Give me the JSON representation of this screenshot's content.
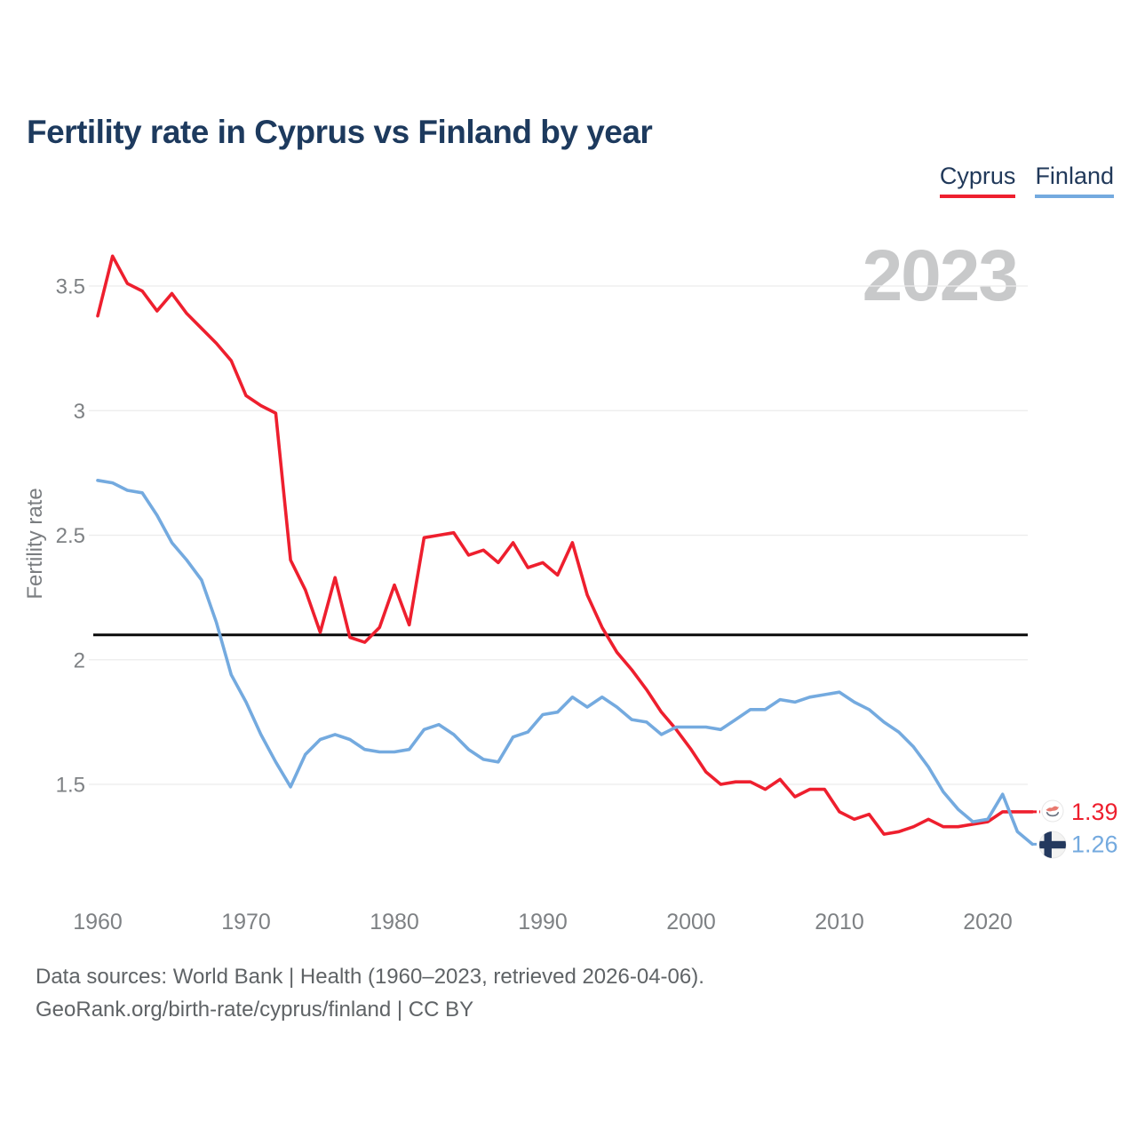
{
  "header": {
    "title": "Fertility rate in Cyprus vs Finland by year"
  },
  "legend": [
    {
      "label": "Cyprus",
      "color": "#ee1f2e"
    },
    {
      "label": "Finland",
      "color": "#74aadf"
    }
  ],
  "watermark": "2023",
  "footer": {
    "line1": "Data sources: World Bank | Health (1960–2023, retrieved 2026-04-06).",
    "line2": "GeoRank.org/birth-rate/cyprus/finland | CC BY"
  },
  "chart_data": {
    "type": "line",
    "title": "Fertility rate in Cyprus vs Finland by year",
    "xlabel": "",
    "ylabel": "Fertility rate",
    "x_ticks": [
      1960,
      1970,
      1980,
      1990,
      2000,
      2010,
      2020
    ],
    "y_ticks": [
      3.5,
      3,
      2.5,
      2,
      1.5
    ],
    "ylim": [
      1.1,
      3.75
    ],
    "grid": "horizontal",
    "legend_position": "top-right",
    "reference_line": 2.1,
    "x": [
      1960,
      1961,
      1962,
      1963,
      1964,
      1965,
      1966,
      1967,
      1968,
      1969,
      1970,
      1971,
      1972,
      1973,
      1974,
      1975,
      1976,
      1977,
      1978,
      1979,
      1980,
      1981,
      1982,
      1983,
      1984,
      1985,
      1986,
      1987,
      1988,
      1989,
      1990,
      1991,
      1992,
      1993,
      1994,
      1995,
      1996,
      1997,
      1998,
      1999,
      2000,
      2001,
      2002,
      2003,
      2004,
      2005,
      2006,
      2007,
      2008,
      2009,
      2010,
      2011,
      2012,
      2013,
      2014,
      2015,
      2016,
      2017,
      2018,
      2019,
      2020,
      2021,
      2022,
      2023
    ],
    "series": [
      {
        "name": "Cyprus",
        "color": "#ee1f2e",
        "last_value_label": "1.39",
        "values": [
          3.38,
          3.62,
          3.51,
          3.48,
          3.4,
          3.47,
          3.39,
          3.33,
          3.27,
          3.2,
          3.06,
          3.02,
          2.99,
          2.4,
          2.28,
          2.11,
          2.33,
          2.09,
          2.07,
          2.13,
          2.3,
          2.14,
          2.49,
          2.5,
          2.51,
          2.42,
          2.44,
          2.39,
          2.47,
          2.37,
          2.39,
          2.34,
          2.47,
          2.26,
          2.13,
          2.03,
          1.96,
          1.88,
          1.79,
          1.72,
          1.64,
          1.55,
          1.5,
          1.51,
          1.51,
          1.48,
          1.52,
          1.45,
          1.48,
          1.48,
          1.39,
          1.36,
          1.38,
          1.3,
          1.31,
          1.33,
          1.36,
          1.33,
          1.33,
          1.34,
          1.35,
          1.39,
          1.39,
          1.39
        ]
      },
      {
        "name": "Finland",
        "color": "#74aadf",
        "last_value_label": "1.26",
        "values": [
          2.72,
          2.71,
          2.68,
          2.67,
          2.58,
          2.47,
          2.4,
          2.32,
          2.15,
          1.94,
          1.83,
          1.7,
          1.59,
          1.49,
          1.62,
          1.68,
          1.7,
          1.68,
          1.64,
          1.63,
          1.63,
          1.64,
          1.72,
          1.74,
          1.7,
          1.64,
          1.6,
          1.59,
          1.69,
          1.71,
          1.78,
          1.79,
          1.85,
          1.81,
          1.85,
          1.81,
          1.76,
          1.75,
          1.7,
          1.73,
          1.73,
          1.73,
          1.72,
          1.76,
          1.8,
          1.8,
          1.84,
          1.83,
          1.85,
          1.86,
          1.87,
          1.83,
          1.8,
          1.75,
          1.71,
          1.65,
          1.57,
          1.47,
          1.4,
          1.35,
          1.36,
          1.46,
          1.31,
          1.26
        ]
      }
    ]
  }
}
